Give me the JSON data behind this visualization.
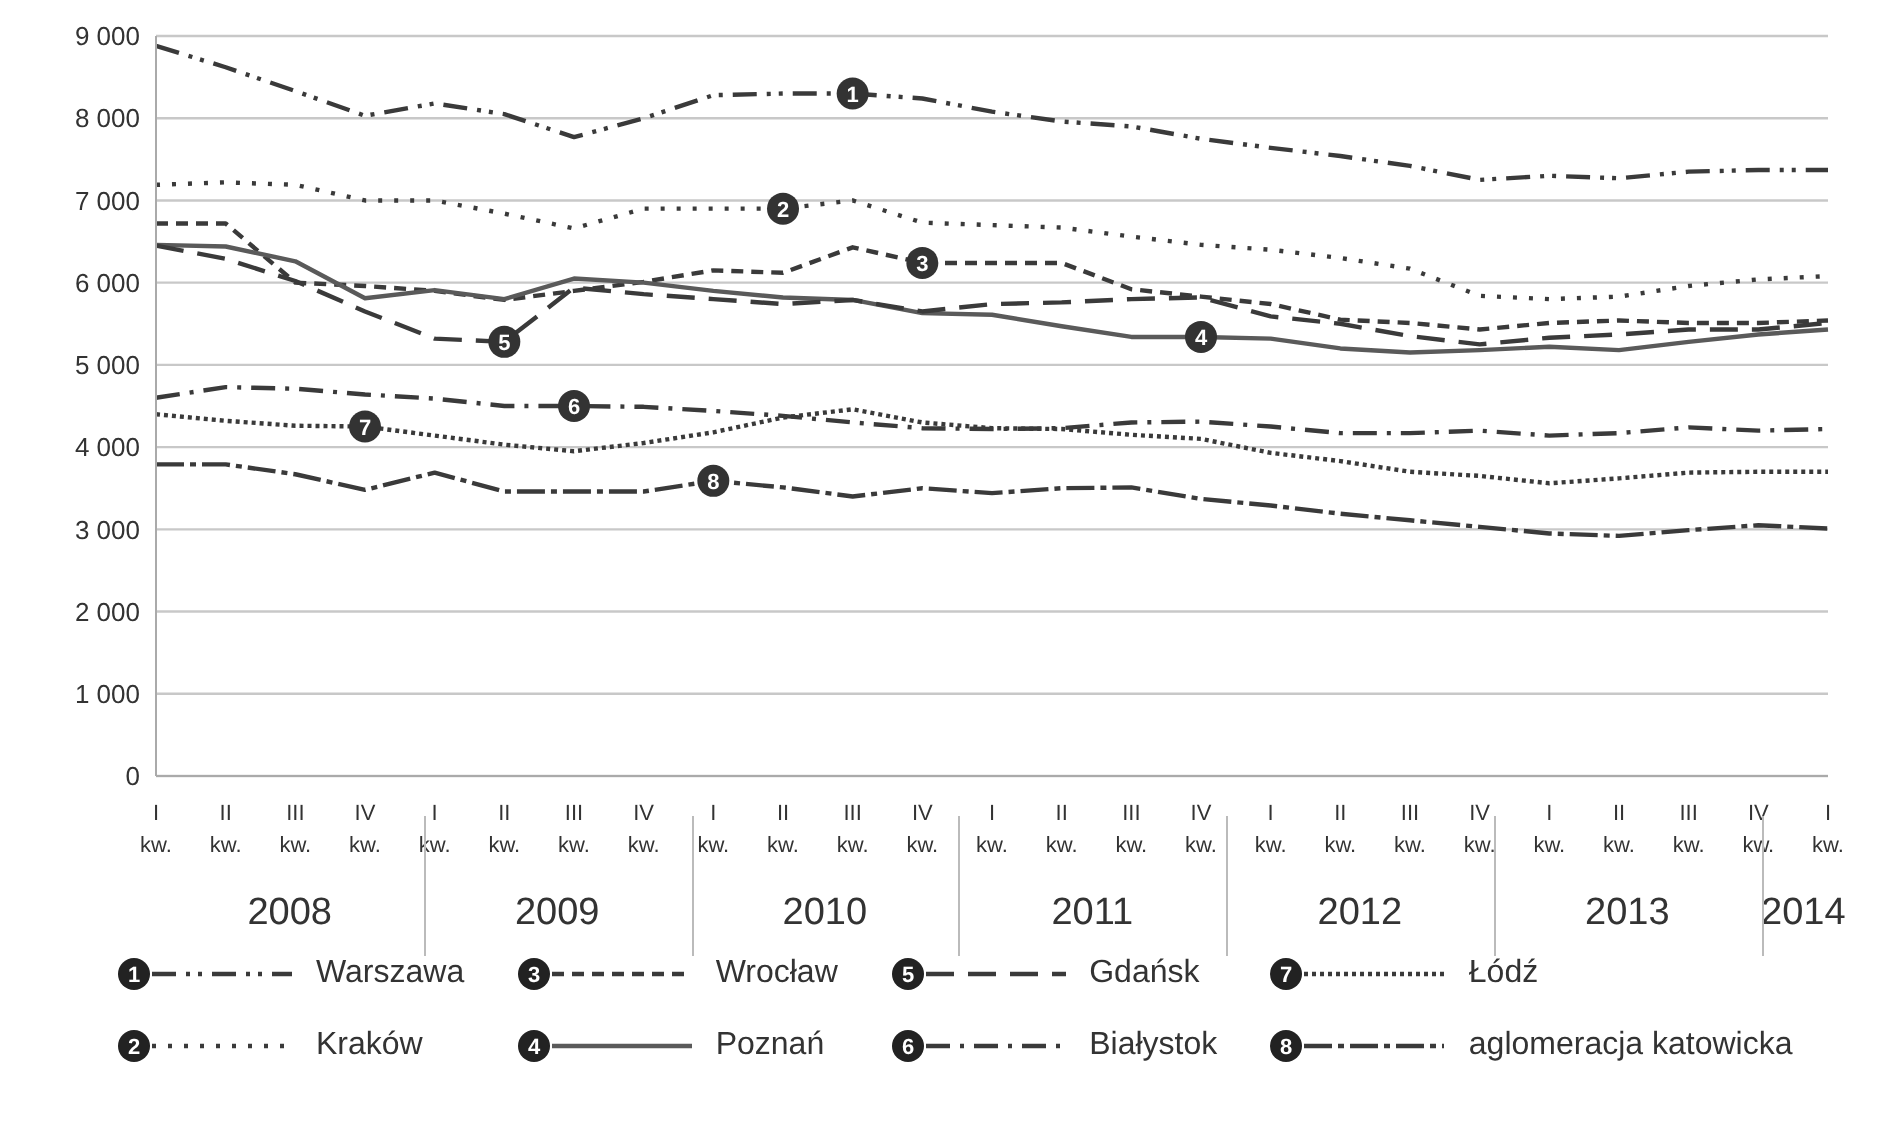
{
  "chart_data": {
    "type": "line",
    "categories": [
      "I kw.",
      "II kw.",
      "III kw.",
      "IV kw.",
      "I kw.",
      "II kw.",
      "III kw.",
      "IV kw.",
      "I kw.",
      "II kw.",
      "III kw.",
      "IV kw.",
      "I kw.",
      "II kw.",
      "III kw.",
      "IV kw.",
      "I kw.",
      "II kw.",
      "III kw.",
      "IV kw.",
      "I kw.",
      "II kw.",
      "III kw.",
      "IV kw.",
      "I kw."
    ],
    "annotations": [
      "2008",
      "2009",
      "2010",
      "2011",
      "2012",
      "2013",
      "2014",
      "1",
      "2",
      "3",
      "4",
      "5",
      "6",
      "7",
      "8"
    ],
    "ylim": [
      0,
      9000
    ],
    "yticks": [
      0,
      {
        "value": 1000,
        "label": "1 000"
      },
      {
        "value": 2000,
        "label": "2 000"
      },
      {
        "value": 3000,
        "label": "3 000"
      },
      {
        "value": 4000,
        "label": "4 000"
      },
      {
        "value": 5000,
        "label": "5 000"
      },
      {
        "value": 6000,
        "label": "6 000"
      },
      {
        "value": 7000,
        "label": "7 000"
      },
      {
        "value": 8000,
        "label": "8 000"
      },
      {
        "value": 9000,
        "label": "9 000"
      }
    ],
    "grid": "y",
    "legend": "bottom",
    "marker": "none",
    "series": [
      {
        "name": "Warszawa",
        "color": "#3a3a3a",
        "line_style": "dashed",
        "values": [
          8880,
          8620,
          8330,
          8030,
          8180,
          8050,
          7770,
          8000,
          8280,
          8300,
          8300,
          8240,
          8080,
          7960,
          7900,
          7750,
          7640,
          7540,
          7420,
          7250,
          7300,
          7270,
          7350,
          7370,
          7370
        ]
      },
      {
        "name": "Kraków",
        "color": "#3a3a3a",
        "line_style": "dotted",
        "values": [
          7190,
          7220,
          7190,
          7000,
          7000,
          6840,
          6660,
          6900,
          6900,
          6900,
          7000,
          6730,
          6700,
          6670,
          6560,
          6460,
          6400,
          6300,
          6170,
          5840,
          5800,
          5830,
          5960,
          6040,
          6080
        ]
      },
      {
        "name": "Wrocław",
        "color": "#3a3a3a",
        "line_style": "dashed",
        "values": [
          6720,
          6720,
          6000,
          5960,
          5900,
          5790,
          5900,
          6010,
          6150,
          6120,
          6430,
          6240,
          6240,
          6240,
          5920,
          5830,
          5740,
          5550,
          5510,
          5430,
          5510,
          5540,
          5510,
          5510,
          5540
        ]
      },
      {
        "name": "Poznań",
        "color": "#5a5a5a",
        "line_style": "solid",
        "values": [
          6460,
          6440,
          6260,
          5810,
          5910,
          5800,
          6050,
          6000,
          5900,
          5820,
          5790,
          5630,
          5610,
          5470,
          5340,
          5340,
          5320,
          5200,
          5150,
          5180,
          5220,
          5180,
          5280,
          5370,
          5430
        ]
      },
      {
        "name": "Gdańsk",
        "color": "#3a3a3a",
        "line_style": "dashed",
        "values": [
          6450,
          6290,
          6020,
          5650,
          5320,
          5280,
          5940,
          5860,
          5800,
          5740,
          5790,
          5650,
          5740,
          5760,
          5800,
          5820,
          5590,
          5500,
          5350,
          5250,
          5330,
          5370,
          5430,
          5430,
          5510
        ]
      },
      {
        "name": "Białystok",
        "color": "#3a3a3a",
        "line_style": "dashed",
        "values": [
          4600,
          4730,
          4710,
          4640,
          4590,
          4500,
          4500,
          4490,
          4440,
          4380,
          4300,
          4230,
          4220,
          4230,
          4300,
          4310,
          4250,
          4170,
          4170,
          4200,
          4140,
          4170,
          4240,
          4200,
          4220
        ]
      },
      {
        "name": "Łódź",
        "color": "#3a3a3a",
        "line_style": "dotted",
        "values": [
          4400,
          4320,
          4260,
          4250,
          4140,
          4030,
          3950,
          4050,
          4180,
          4360,
          4460,
          4300,
          4230,
          4220,
          4150,
          4100,
          3930,
          3830,
          3700,
          3650,
          3560,
          3620,
          3690,
          3700,
          3700
        ]
      },
      {
        "name": "aglomeracja katowicka",
        "color": "#3a3a3a",
        "line_style": "dashed",
        "values": [
          3790,
          3790,
          3670,
          3480,
          3690,
          3460,
          3460,
          3460,
          3590,
          3510,
          3400,
          3500,
          3440,
          3500,
          3510,
          3370,
          3290,
          3190,
          3110,
          3030,
          2950,
          2920,
          2990,
          3050,
          3010
        ]
      }
    ]
  }
}
